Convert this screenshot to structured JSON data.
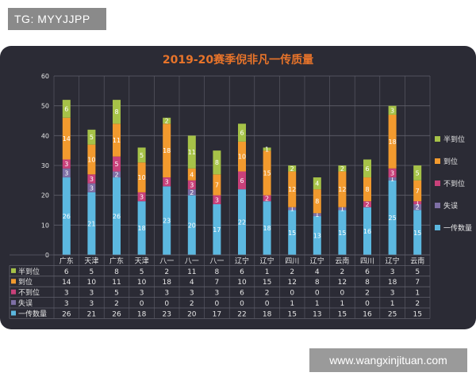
{
  "watermarks": {
    "top": "TG: MYYJJPP",
    "bottom": "www.wangxinjituan.com"
  },
  "colors": {
    "background": "#2b2b35",
    "title": "#e8742a",
    "grid": "#5f5f6b",
    "text": "#e6e6e6",
    "series": [
      "#5cb8e0",
      "#7e6fa5",
      "#c8417a",
      "#f29a2e",
      "#a6c248"
    ]
  },
  "chart_data": {
    "type": "bar",
    "stacked": true,
    "title": "2019-20赛季倪非凡一传质量",
    "ylim": [
      0,
      60
    ],
    "yticks": [
      0,
      10,
      20,
      30,
      40,
      50,
      60
    ],
    "grid": true,
    "legend_position": "right",
    "categories": [
      "广东",
      "天津",
      "广东",
      "天津",
      "八一",
      "八一",
      "八一",
      "辽宁",
      "辽宁",
      "四川",
      "辽宁",
      "云南",
      "四川",
      "辽宁",
      "云南"
    ],
    "series": [
      {
        "name": "一传数量",
        "values": [
          26,
          21,
          26,
          18,
          23,
          20,
          17,
          22,
          18,
          15,
          13,
          15,
          16,
          25,
          15
        ]
      },
      {
        "name": "失误",
        "values": [
          3,
          3,
          2,
          0,
          0,
          2,
          0,
          0,
          0,
          1,
          1,
          1,
          0,
          1,
          2
        ]
      },
      {
        "name": "不到位",
        "values": [
          3,
          3,
          5,
          3,
          3,
          3,
          3,
          6,
          2,
          0,
          0,
          0,
          2,
          3,
          1
        ]
      },
      {
        "name": "到位",
        "values": [
          14,
          10,
          11,
          10,
          18,
          4,
          7,
          10,
          15,
          12,
          8,
          12,
          8,
          18,
          7
        ]
      },
      {
        "name": "半到位",
        "values": [
          6,
          5,
          8,
          5,
          2,
          11,
          8,
          6,
          1,
          2,
          4,
          2,
          6,
          3,
          5
        ]
      }
    ],
    "table_row_order": [
      "半到位",
      "到位",
      "不到位",
      "失误",
      "一传数量"
    ]
  }
}
